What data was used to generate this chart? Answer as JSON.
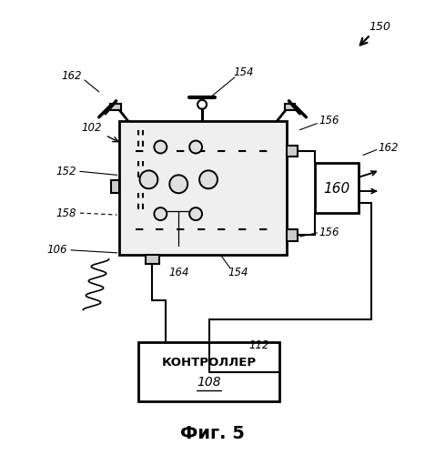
{
  "bg_color": "#ffffff",
  "line_color": "#000000",
  "label_150": "150",
  "label_154_top": "154",
  "label_162_left": "162",
  "label_102": "102",
  "label_152": "152",
  "label_158": "158",
  "label_106": "106",
  "label_164": "164",
  "label_154_bot": "154",
  "label_156_top": "156",
  "label_156_bot": "156",
  "label_162_right": "162",
  "label_160": "160",
  "label_112": "112",
  "controller_text": "КОНТРОЛЛЕР",
  "controller_num": "108",
  "fig_label": "Фиг. 5"
}
